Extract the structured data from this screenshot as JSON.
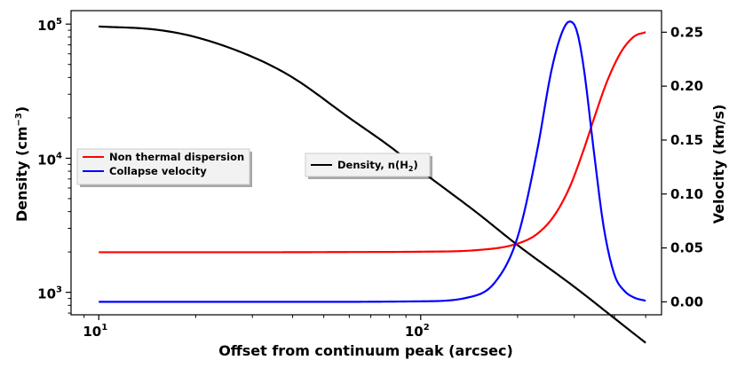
{
  "chart_data": {
    "type": "line",
    "x_scale": "log",
    "left_axis_scale": "log",
    "right_axis_scale": "linear",
    "xlabel": "Offset from continuum peak (arcsec)",
    "ylabel_left_text": "Density (cm",
    "ylabel_left_exp": "−3",
    "ylabel_left_close": ")",
    "ylabel_right": "Velocity (km/s)",
    "xlim": [
      8.2,
      560
    ],
    "ylim_left": [
      680,
      126000
    ],
    "ylim_right": [
      -0.012,
      0.27
    ],
    "x_ticks": [
      {
        "value": 10,
        "base": "10",
        "exp": "1"
      },
      {
        "value": 100,
        "base": "10",
        "exp": "2"
      }
    ],
    "left_ticks": [
      {
        "value": 1000,
        "base": "10",
        "exp": "3"
      },
      {
        "value": 10000,
        "base": "10",
        "exp": "4"
      },
      {
        "value": 100000,
        "base": "10",
        "exp": "5"
      }
    ],
    "right_ticks": [
      "0.00",
      "0.05",
      "0.10",
      "0.15",
      "0.20",
      "0.25"
    ],
    "grid": false,
    "series": [
      {
        "name_text": "Density, n(H",
        "name_sub": "2",
        "name_close": ")",
        "axis": "left",
        "color": "#000000",
        "x": [
          10,
          15,
          20,
          30,
          40,
          60,
          80,
          100,
          150,
          200,
          300,
          400,
          500
        ],
        "y": [
          96000,
          91000,
          80000,
          57000,
          40000,
          20000,
          12300,
          8100,
          3900,
          2250,
          1100,
          640,
          420
        ]
      },
      {
        "name": "Non thermal dispersion",
        "axis": "right",
        "color": "#ff0000",
        "x": [
          10,
          30,
          60,
          100,
          150,
          200,
          230,
          260,
          290,
          320,
          350,
          380,
          420,
          460,
          500
        ],
        "y": [
          0.046,
          0.046,
          0.0462,
          0.0465,
          0.048,
          0.054,
          0.063,
          0.08,
          0.106,
          0.14,
          0.175,
          0.205,
          0.232,
          0.246,
          0.25
        ]
      },
      {
        "name": "Collapse velocity",
        "axis": "right",
        "color": "#0000ff",
        "x": [
          10,
          50,
          100,
          140,
          170,
          200,
          230,
          255,
          275,
          290,
          305,
          320,
          345,
          370,
          400,
          430,
          460,
          500
        ],
        "y": [
          0.0,
          0.0,
          0.0005,
          0.004,
          0.018,
          0.06,
          0.14,
          0.215,
          0.25,
          0.26,
          0.252,
          0.22,
          0.14,
          0.07,
          0.025,
          0.01,
          0.004,
          0.001
        ]
      }
    ],
    "legends": [
      {
        "placement": "center-left",
        "entries": [
          1,
          2
        ]
      },
      {
        "placement": "center",
        "entries": [
          0
        ]
      }
    ]
  }
}
